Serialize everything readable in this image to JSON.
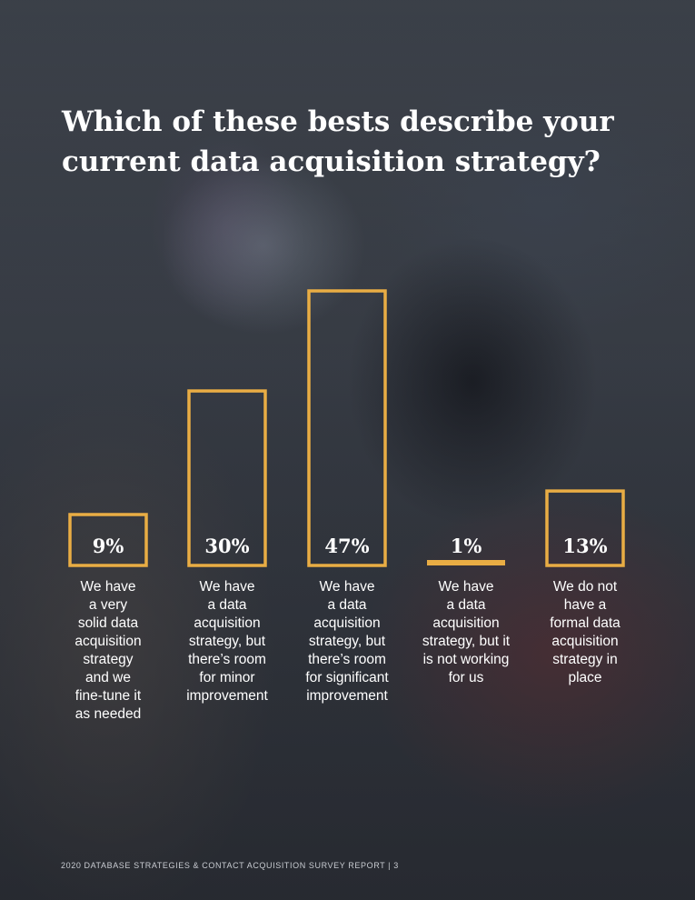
{
  "page": {
    "footer": "2020 DATABASE STRATEGIES & CONTACT ACQUISITION SURVEY REPORT | 3"
  },
  "colors": {
    "accent": "#e9ad44",
    "text": "#ffffff"
  },
  "chart_data": {
    "type": "bar",
    "title": "Which of these bests describe your current data acquisition strategy?",
    "categories": [
      "We have\na very\nsolid data\nacquisition\nstrategy\nand we\nfine-tune it\nas needed",
      "We have\na data\nacquisition\nstrategy, but\nthere’s room\nfor minor\nimprovement",
      "We have\na data\nacquisition\nstrategy, but\nthere’s room\nfor significant\nimprovement",
      "We have\na data\nacquisition\nstrategy, but it\nis not working\nfor us",
      "We do not\nhave a\nformal data\nacquisition\nstrategy in\nplace"
    ],
    "values": [
      9,
      30,
      47,
      1,
      13
    ],
    "value_labels": [
      "9%",
      "30%",
      "47%",
      "1%",
      "13%"
    ],
    "unit": "%",
    "ylim": [
      0,
      47
    ],
    "grid": false,
    "legend": "none"
  }
}
